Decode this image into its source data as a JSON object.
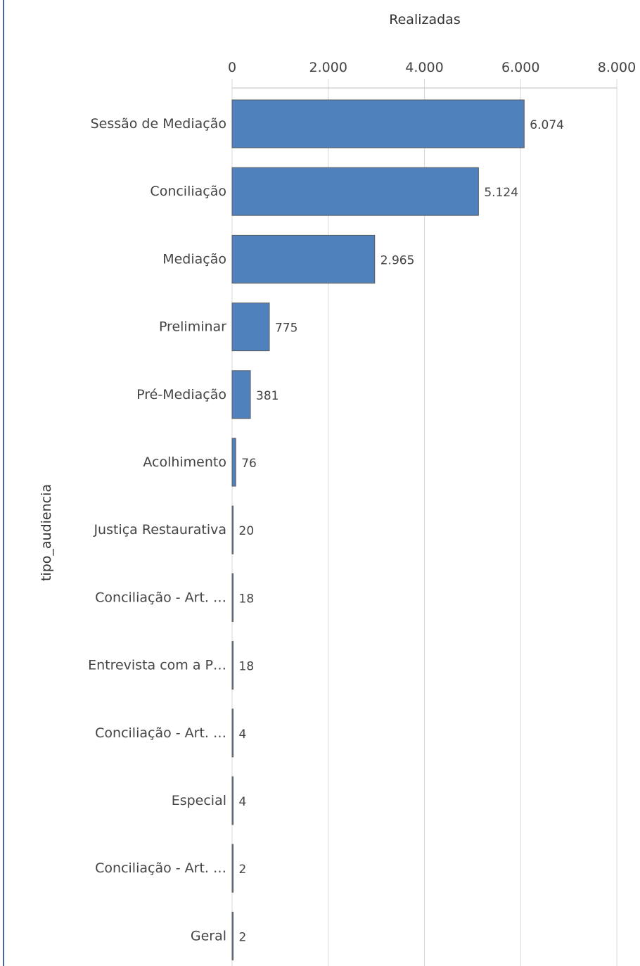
{
  "chart_data": {
    "type": "bar",
    "orientation": "horizontal",
    "title": "",
    "xlabel": "Realizadas",
    "ylabel": "tipo_audiencia",
    "xlim": [
      0,
      8000
    ],
    "ticks": [
      0,
      2000,
      4000,
      6000,
      8000
    ],
    "tick_labels": [
      "0",
      "2.000",
      "4.000",
      "6.000",
      "8.000"
    ],
    "grid": true,
    "x_axis_position": "top",
    "bar_color": "#4f81bd",
    "categories": [
      "Sessão de Mediação",
      "Conciliação",
      "Mediação",
      "Preliminar",
      "Pré-Mediação",
      "Acolhimento",
      "Justiça Restaurativa",
      "Conciliação - Art. …",
      "Entrevista com a P…",
      "Conciliação - Art. …",
      "Especial",
      "Conciliação - Art. …",
      "Geral"
    ],
    "values": [
      6074,
      5124,
      2965,
      775,
      381,
      76,
      20,
      18,
      18,
      4,
      4,
      2,
      2
    ],
    "value_labels": [
      "6.074",
      "5.124",
      "2.965",
      "775",
      "381",
      "76",
      "20",
      "18",
      "18",
      "4",
      "4",
      "2",
      "2"
    ]
  }
}
